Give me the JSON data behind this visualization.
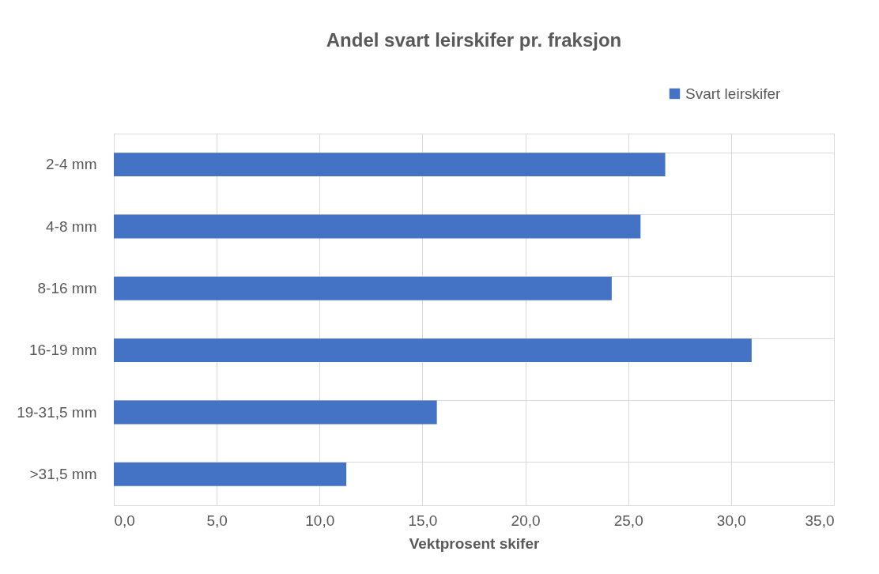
{
  "chart_data": {
    "type": "bar",
    "orientation": "horizontal",
    "title": "Andel svart leirskifer pr. fraksjon",
    "xlabel": "Vektprosent skifer",
    "categories": [
      "2-4 mm",
      "4-8 mm",
      "8-16 mm",
      "16-19 mm",
      "19-31,5 mm",
      ">31,5 mm"
    ],
    "series": [
      {
        "name": "Svart leirskifer",
        "color": "#4472c4",
        "values": [
          26.8,
          25.6,
          24.2,
          31.0,
          15.7,
          11.3
        ]
      }
    ],
    "xlim": [
      0,
      35
    ],
    "xticks": [
      {
        "value": 0,
        "label": "0,0"
      },
      {
        "value": 5,
        "label": "5,0"
      },
      {
        "value": 10,
        "label": "10,0"
      },
      {
        "value": 15,
        "label": "15,0"
      },
      {
        "value": 20,
        "label": "20,0"
      },
      {
        "value": 25,
        "label": "25,0"
      },
      {
        "value": 30,
        "label": "30,0"
      },
      {
        "value": 35,
        "label": "35,0"
      }
    ],
    "grid": true,
    "legend": "top right"
  }
}
